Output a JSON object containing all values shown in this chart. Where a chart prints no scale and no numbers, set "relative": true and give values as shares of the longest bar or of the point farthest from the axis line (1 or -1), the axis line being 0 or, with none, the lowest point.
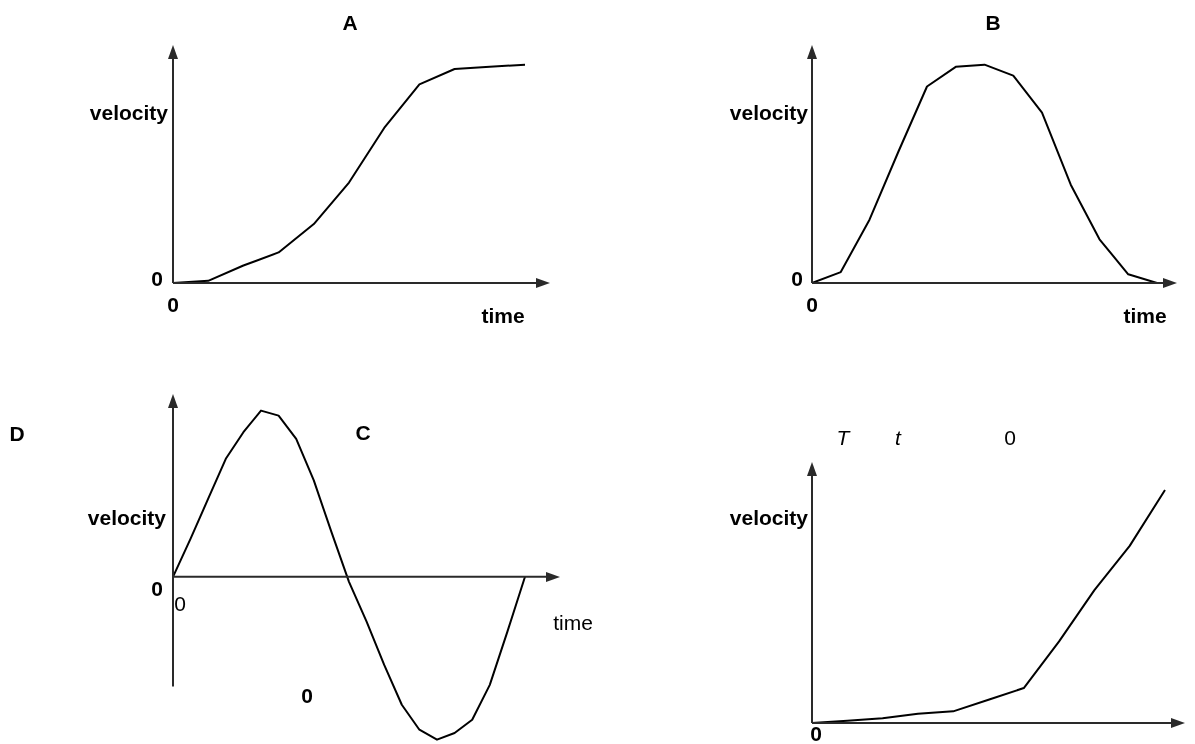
{
  "chart_data": [
    {
      "type": "line",
      "title": "A",
      "xlabel": "time",
      "ylabel": "velocity",
      "relative": true,
      "categories": [
        null,
        null,
        null,
        null,
        null,
        null,
        null,
        null,
        null,
        null,
        null
      ],
      "series": [
        {
          "color": "#000000",
          "values": [
            0,
            0.01,
            0.08,
            0.14,
            0.27,
            0.46,
            0.71,
            0.91,
            0.98,
            0.99,
            1
          ]
        }
      ],
      "annotations": [
        "0",
        "0"
      ]
    },
    {
      "type": "line",
      "title": "B",
      "xlabel": "time",
      "ylabel": "velocity",
      "relative": true,
      "categories": [
        null,
        null,
        null,
        null,
        null,
        null,
        null,
        null,
        null,
        null,
        null,
        null,
        null
      ],
      "series": [
        {
          "color": "#000000",
          "values": [
            0,
            0.05,
            0.29,
            0.6,
            0.9,
            0.99,
            1,
            0.95,
            0.78,
            0.45,
            0.2,
            0.04,
            0
          ]
        }
      ],
      "annotations": [
        "0",
        "0"
      ]
    },
    {
      "type": "line",
      "title": "C",
      "xlabel": "time",
      "ylabel": "velocity",
      "relative": true,
      "categories": [
        null,
        null,
        null,
        null,
        null,
        null,
        null,
        null,
        null,
        null,
        null,
        null,
        null,
        null,
        null,
        null,
        null,
        null,
        null,
        null,
        null
      ],
      "series": [
        {
          "color": "#000000",
          "values": [
            0,
            0.23,
            0.47,
            0.71,
            0.87,
            1,
            0.97,
            0.83,
            0.58,
            0.27,
            -0.03,
            -0.27,
            -0.53,
            -0.77,
            -0.92,
            -0.98,
            -0.94,
            -0.86,
            -0.65,
            -0.33,
            0
          ]
        }
      ],
      "annotations": [
        "D",
        "0",
        "0",
        "0"
      ]
    },
    {
      "type": "line",
      "ylabel": "velocity",
      "relative": true,
      "categories": [
        null,
        null,
        null,
        null,
        null,
        null,
        null,
        null,
        null,
        null,
        null
      ],
      "series": [
        {
          "color": "#000000",
          "values": [
            0,
            0.01,
            0.02,
            0.04,
            0.05,
            0.1,
            0.15,
            0.35,
            0.57,
            0.76,
            1
          ]
        }
      ],
      "annotations": [
        "T",
        "t",
        "0",
        "0"
      ]
    }
  ]
}
